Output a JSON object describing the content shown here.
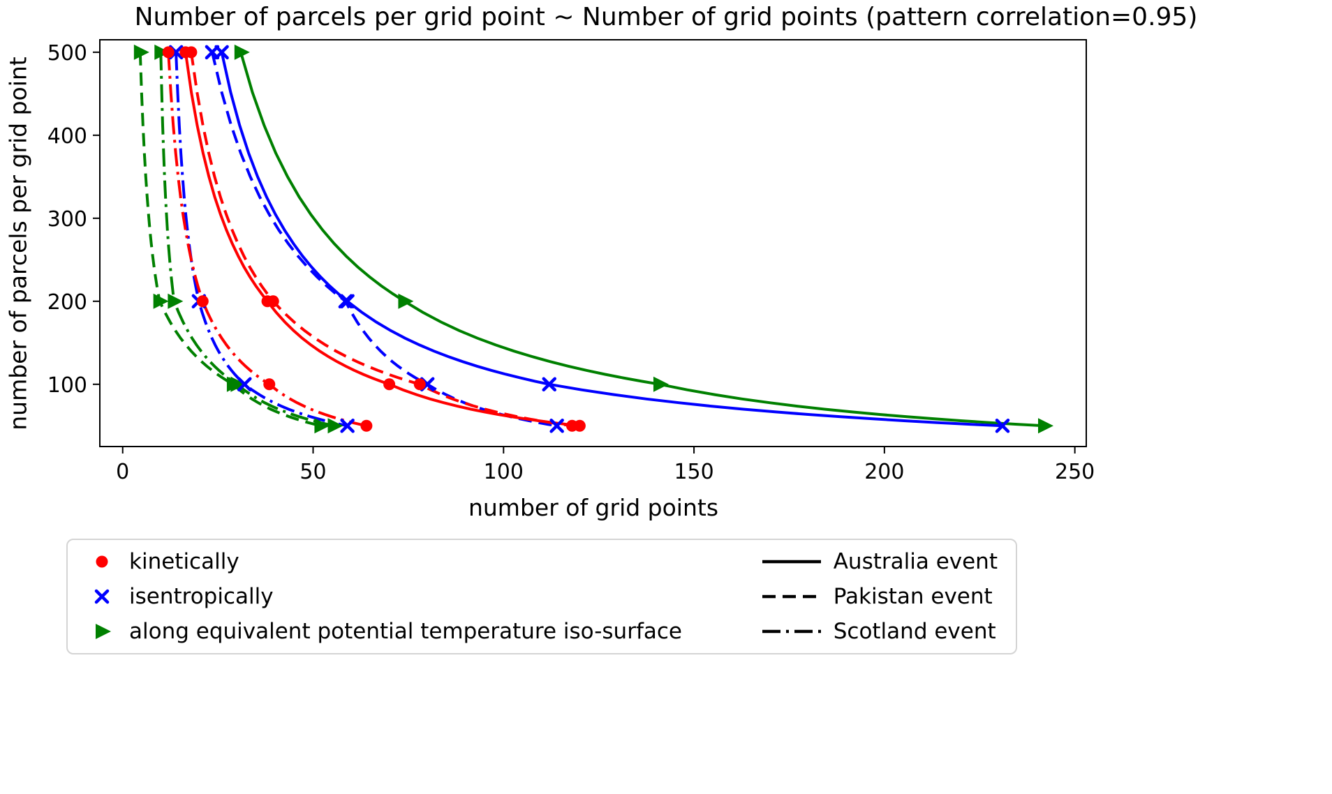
{
  "figure": {
    "background": "#ffffff"
  },
  "chart_data": {
    "type": "line",
    "title": "Number of parcels per grid point ~ Number of grid points (pattern correlation=0.95)",
    "xlabel": "number of grid points",
    "ylabel": "number of parcels per grid point",
    "xlim": [
      -6,
      253
    ],
    "ylim": [
      25,
      515
    ],
    "xticks": [
      0,
      50,
      100,
      150,
      200,
      250
    ],
    "yticks": [
      100,
      200,
      300,
      400,
      500
    ],
    "grid": false,
    "legend_position": "bottom-left",
    "pattern_correlation_in_title": "0.95",
    "colors": {
      "red": "#ff0000",
      "blue": "#0000ff",
      "green": "#008000"
    },
    "parcel_levels": [
      500,
      200,
      100,
      50
    ],
    "series": [
      {
        "name": "along equivalent potential temperature iso-surface - Australia event",
        "method": "along equivalent potential temperature iso-surface",
        "event": "Australia event",
        "color": "green",
        "marker": "triangle-right",
        "line_style": "solid",
        "x": [
          31,
          74,
          141,
          242
        ],
        "y": [
          500,
          200,
          100,
          50
        ]
      },
      {
        "name": "along equivalent potential temperature iso-surface - Pakistan event",
        "method": "along equivalent potential temperature iso-surface",
        "event": "Pakistan event",
        "color": "green",
        "marker": "triangle-right",
        "line_style": "dashed",
        "x": [
          4.6,
          9.7,
          29,
          52
        ],
        "y": [
          500,
          200,
          100,
          50
        ]
      },
      {
        "name": "along equivalent potential temperature iso-surface - Scotland event",
        "method": "along equivalent potential temperature iso-surface",
        "event": "Scotland event",
        "color": "green",
        "marker": "triangle-right",
        "line_style": "dashdot",
        "x": [
          10,
          13.5,
          30,
          55.5
        ],
        "y": [
          500,
          200,
          100,
          50
        ]
      },
      {
        "name": "isentropically - Australia event",
        "method": "isentropically",
        "event": "Australia event",
        "color": "blue",
        "marker": "x",
        "line_style": "solid",
        "x": [
          26,
          59,
          112,
          231
        ],
        "y": [
          500,
          200,
          100,
          50
        ]
      },
      {
        "name": "isentropically - Pakistan event",
        "method": "isentropically",
        "event": "Pakistan event",
        "color": "blue",
        "marker": "x",
        "line_style": "dashed",
        "x": [
          23.5,
          58.5,
          80,
          114
        ],
        "y": [
          500,
          200,
          100,
          50
        ]
      },
      {
        "name": "isentropically - Scotland event",
        "method": "isentropically",
        "event": "Scotland event",
        "color": "blue",
        "marker": "x",
        "line_style": "dashdot",
        "x": [
          14,
          20,
          32,
          59
        ],
        "y": [
          500,
          200,
          100,
          50
        ]
      },
      {
        "name": "kinetically - Australia event",
        "method": "kinetically",
        "event": "Australia event",
        "color": "red",
        "marker": "circle",
        "line_style": "solid",
        "x": [
          16.5,
          38,
          70,
          120
        ],
        "y": [
          500,
          200,
          100,
          50
        ]
      },
      {
        "name": "kinetically - Pakistan event",
        "method": "kinetically",
        "event": "Pakistan event",
        "color": "red",
        "marker": "circle",
        "line_style": "dashed",
        "x": [
          18,
          39.5,
          78,
          118
        ],
        "y": [
          500,
          200,
          100,
          50
        ]
      },
      {
        "name": "kinetically - Scotland event",
        "method": "kinetically",
        "event": "Scotland event",
        "color": "red",
        "marker": "circle",
        "line_style": "dashdot",
        "x": [
          12,
          21,
          38.5,
          64
        ],
        "y": [
          500,
          200,
          100,
          50
        ]
      }
    ],
    "legend": {
      "marker_entries": [
        {
          "marker": "circle",
          "color": "red",
          "label": "kinetically"
        },
        {
          "marker": "x",
          "color": "blue",
          "label": "isentropically"
        },
        {
          "marker": "triangle-right",
          "color": "green",
          "label": "along equivalent potential temperature iso-surface"
        }
      ],
      "line_entries": [
        {
          "line_style": "solid",
          "label": "Australia event"
        },
        {
          "line_style": "dashed",
          "label": "Pakistan event"
        },
        {
          "line_style": "dashdot",
          "label": "Scotland event"
        }
      ]
    }
  }
}
